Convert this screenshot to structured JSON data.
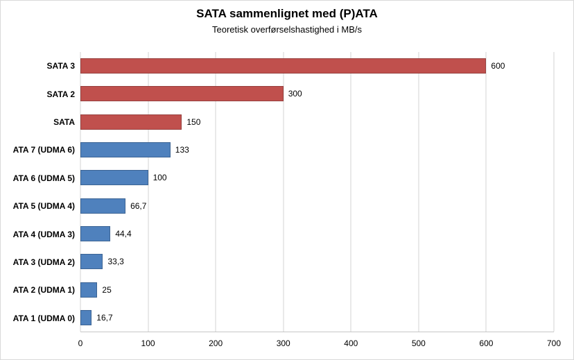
{
  "chart_data": {
    "type": "bar",
    "orientation": "horizontal",
    "title": "SATA sammenlignet med (P)ATA",
    "subtitle": "Teoretisk overførselshastighed i MB/s",
    "categories": [
      "SATA 3",
      "SATA 2",
      "SATA",
      "ATA 7 (UDMA 6)",
      "ATA 6 (UDMA 5)",
      "ATA 5 (UDMA 4)",
      "ATA 4 (UDMA 3)",
      "ATA 3 (UDMA 2)",
      "ATA 2 (UDMA 1)",
      "ATA 1 (UDMA 0)"
    ],
    "values": [
      600,
      300,
      150,
      133,
      100,
      66.7,
      44.4,
      33.3,
      25,
      16.7
    ],
    "value_labels": [
      "600",
      "300",
      "150",
      "133",
      "100",
      "66,7",
      "44,4",
      "33,3",
      "25",
      "16,7"
    ],
    "bar_colors": [
      "#c0504d",
      "#c0504d",
      "#c0504d",
      "#4f81bd",
      "#4f81bd",
      "#4f81bd",
      "#4f81bd",
      "#4f81bd",
      "#4f81bd",
      "#4f81bd"
    ],
    "bar_borders": [
      "#97403e",
      "#97403e",
      "#97403e",
      "#3c6494",
      "#3c6494",
      "#3c6494",
      "#3c6494",
      "#3c6494",
      "#3c6494",
      "#3c6494"
    ],
    "xlim": [
      0,
      700
    ],
    "x_ticks": [
      0,
      100,
      200,
      300,
      400,
      500,
      600,
      700
    ],
    "x_tick_labels": [
      "0",
      "100",
      "200",
      "300",
      "400",
      "500",
      "600",
      "700"
    ],
    "grid": true,
    "legend": "none",
    "colors": {
      "sata_series": "#c0504d",
      "ata_series": "#4f81bd",
      "gridline": "#d3d3d3",
      "axis_line": "#c6c6c6",
      "text": "#000000",
      "background": "#ffffff"
    }
  }
}
